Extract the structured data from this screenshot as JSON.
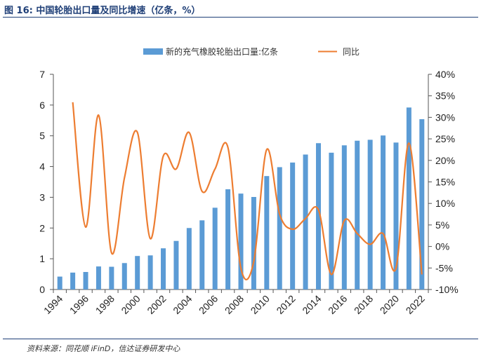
{
  "header": {
    "title": "图 16:  中国轮胎出口量及同比增速（亿条，%）"
  },
  "footer": {
    "source": "资料来源：同花顺 iFinD，信达证券研发中心"
  },
  "chart_data": {
    "type": "bar+line",
    "title": "",
    "x": [
      1994,
      1995,
      1996,
      1997,
      1998,
      1999,
      2000,
      2001,
      2002,
      2003,
      2004,
      2005,
      2006,
      2007,
      2008,
      2009,
      2010,
      2011,
      2012,
      2013,
      2014,
      2015,
      2016,
      2017,
      2018,
      2019,
      2020,
      2021,
      2022
    ],
    "x_tick_labels": [
      "1994",
      "1996",
      "1998",
      "2000",
      "2002",
      "2004",
      "2006",
      "2008",
      "2010",
      "2012",
      "2014",
      "2016",
      "2018",
      "2020",
      "2022"
    ],
    "series": [
      {
        "name": "新的充气橡胶轮胎出口量:亿条",
        "type": "bar",
        "axis": "left",
        "color": "#5b9bd5",
        "values": [
          0.42,
          0.55,
          0.57,
          0.75,
          0.74,
          0.86,
          1.09,
          1.11,
          1.34,
          1.58,
          2.0,
          2.25,
          2.66,
          3.26,
          3.12,
          3.01,
          3.69,
          3.98,
          4.13,
          4.39,
          4.76,
          4.45,
          4.69,
          4.84,
          4.87,
          5.01,
          4.78,
          5.92,
          5.54
        ]
      },
      {
        "name": "同比",
        "type": "line",
        "axis": "right",
        "color": "#ed7d31",
        "values": [
          null,
          33.5,
          4.5,
          30.5,
          -1.5,
          16.0,
          26.5,
          1.8,
          21.0,
          18.0,
          26.5,
          12.8,
          18.0,
          23.0,
          -5.0,
          -3.5,
          22.5,
          7.5,
          4.0,
          6.5,
          8.5,
          -6.5,
          6.0,
          3.0,
          0.5,
          3.0,
          -5.0,
          24.0,
          -6.5
        ]
      }
    ],
    "y_left": {
      "min": 0,
      "max": 7,
      "step": 1,
      "tick_labels": [
        "0",
        "1",
        "2",
        "3",
        "4",
        "5",
        "6",
        "7"
      ]
    },
    "y_right": {
      "min": -10,
      "max": 40,
      "step": 5,
      "tick_labels": [
        "-10%",
        "-5%",
        "0%",
        "5%",
        "10%",
        "15%",
        "20%",
        "25%",
        "30%",
        "35%",
        "40%"
      ]
    },
    "grid": false,
    "legend_position": "top-center"
  }
}
